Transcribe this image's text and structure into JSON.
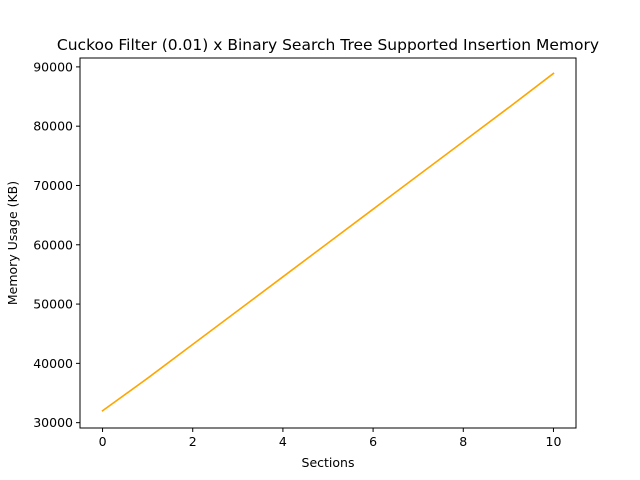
{
  "chart_data": {
    "type": "line",
    "title": "Cuckoo Filter (0.01) x Binary Search Tree Supported Insertion Memory",
    "xlabel": "Sections",
    "ylabel": "Memory Usage (KB)",
    "xlim": [
      -0.5,
      10.5
    ],
    "ylim": [
      29100,
      91500
    ],
    "xticks": [
      0,
      2,
      4,
      6,
      8,
      10
    ],
    "yticks": [
      30000,
      40000,
      50000,
      60000,
      70000,
      80000,
      90000
    ],
    "grid": false,
    "series": [
      {
        "color": "#ffa500",
        "x": [
          0,
          1,
          2,
          3,
          4,
          5,
          6,
          7,
          8,
          9,
          10
        ],
        "y": [
          32000,
          37500,
          43200,
          48900,
          54600,
          60300,
          66000,
          71700,
          77400,
          83100,
          88900
        ]
      }
    ]
  }
}
